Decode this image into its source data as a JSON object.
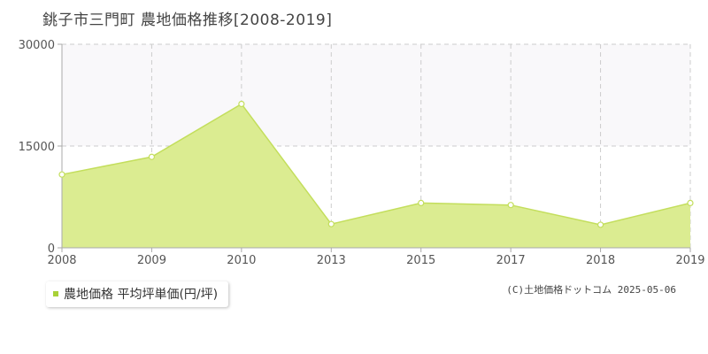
{
  "colors": {
    "area_fill": "#dbec91",
    "line": "#c3de5c",
    "band": "#f9f8fa",
    "grid": "#cccccc",
    "axis": "#aaaaaa",
    "marker_fill": "#ffffff",
    "legend_marker": "#a8d138"
  },
  "chart_data": {
    "type": "area",
    "title": "銚子市三門町 農地価格推移[2008-2019]",
    "categories": [
      "2008",
      "2009",
      "2010",
      "2013",
      "2015",
      "2017",
      "2018",
      "2019"
    ],
    "series": [
      {
        "name": "農地価格 平均坪単価(円/坪)",
        "values": [
          10800,
          13400,
          21200,
          3500,
          6600,
          6300,
          3400,
          6600
        ]
      }
    ],
    "y_ticks": [
      "0",
      "15000",
      "30000"
    ],
    "ylim": [
      0,
      30000
    ],
    "grid": true,
    "legend_position": "bottom-left"
  },
  "credit": "(C)土地価格ドットコム 2025-05-06"
}
